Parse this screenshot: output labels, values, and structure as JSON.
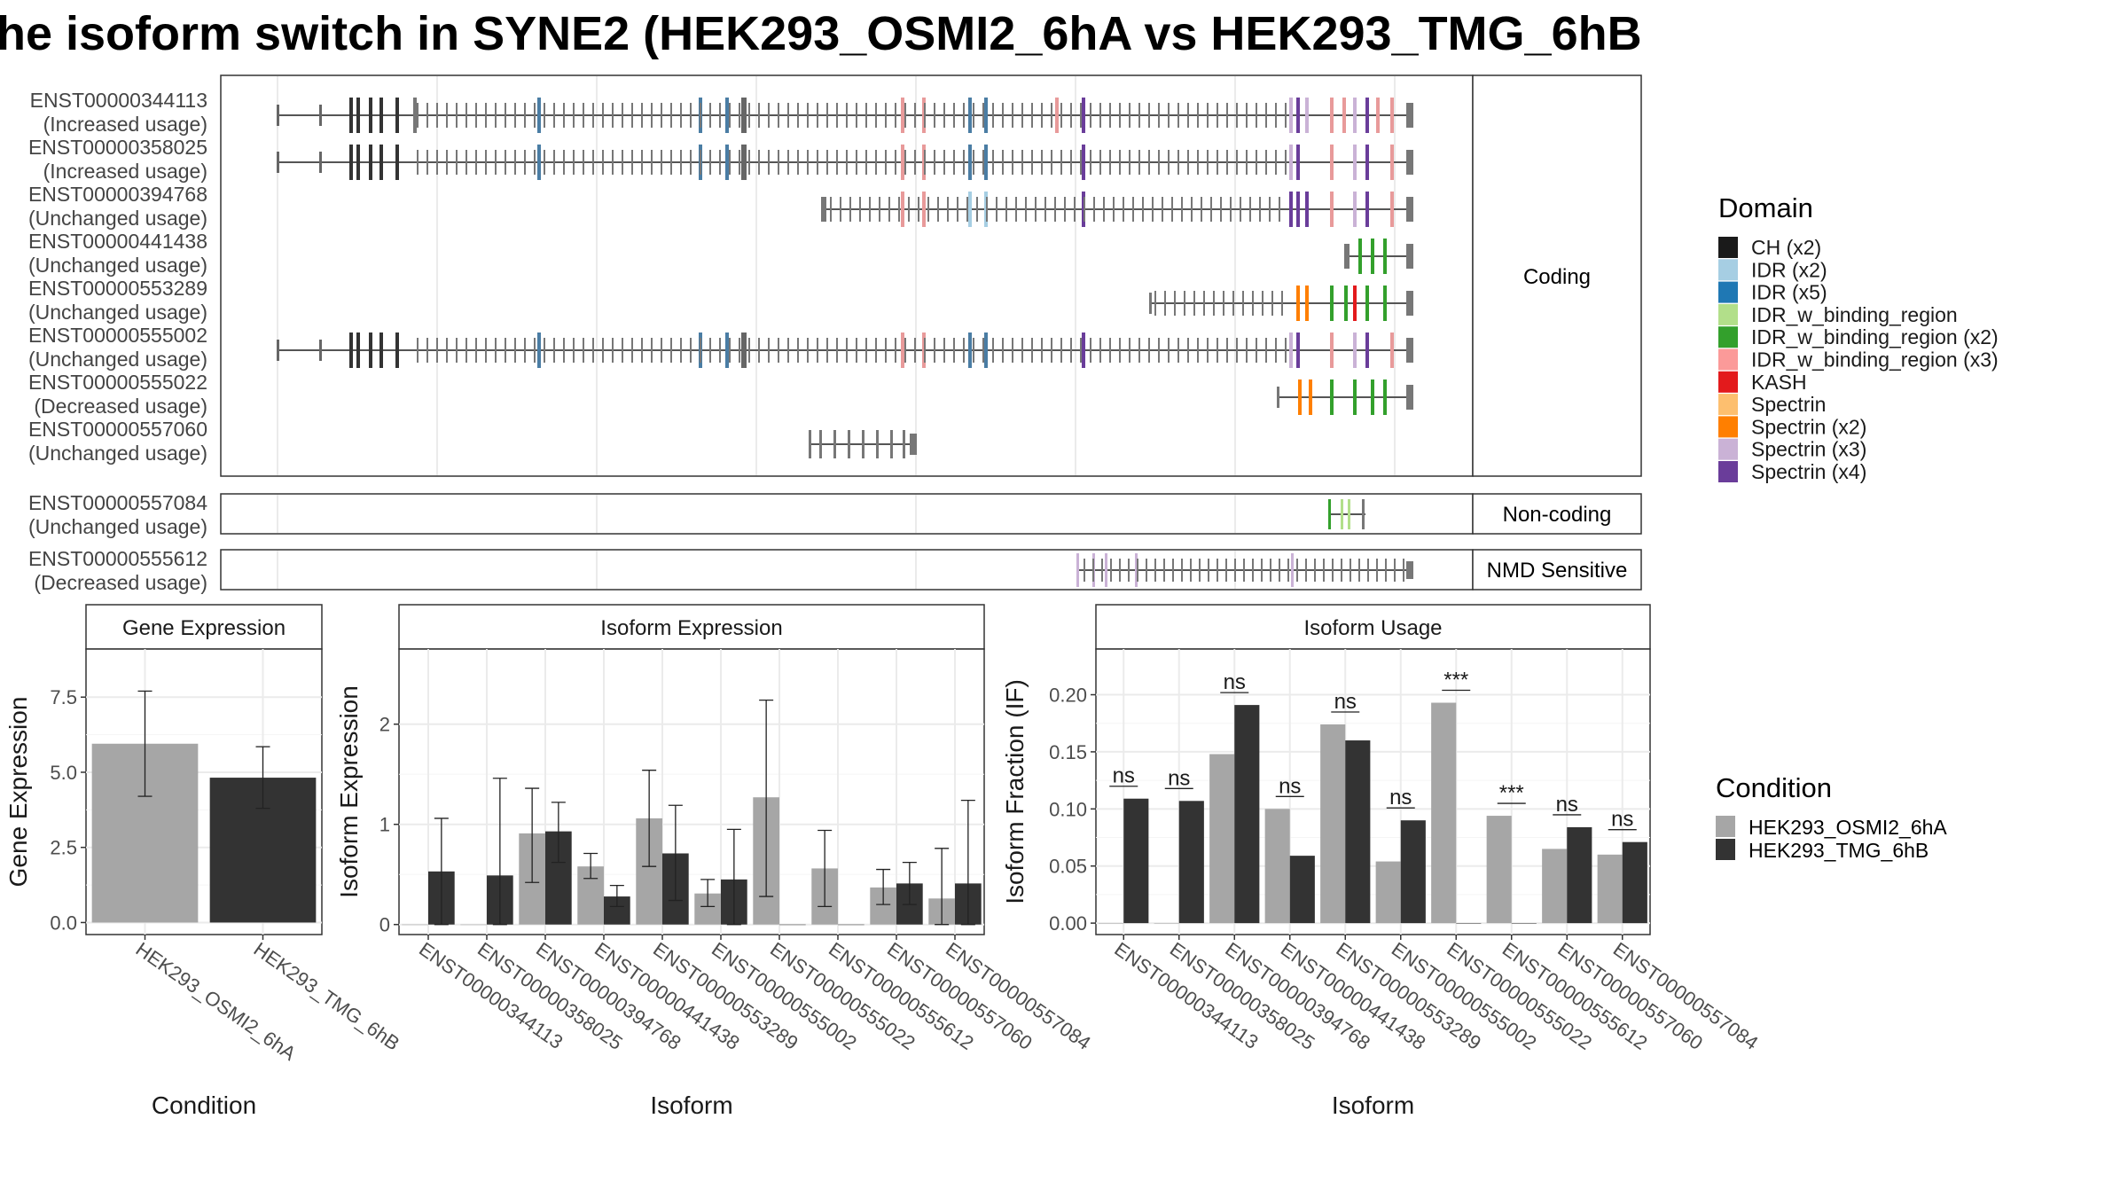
{
  "title": "he isoform switch in SYNE2 (HEK293_OSMI2_6hA vs HEK293_TMG_6hB",
  "colors": {
    "cond_a": "#a6a6a6",
    "cond_b": "#333333",
    "domains": [
      "#1a1a1a",
      "#a6cee3",
      "#1f78b4",
      "#b2df8a",
      "#33a02c",
      "#fb9a99",
      "#e31a1c",
      "#fdbf6f",
      "#ff7f00",
      "#cab2d6",
      "#6a3d9a"
    ]
  },
  "structure": {
    "sections": [
      {
        "label": "Coding",
        "isoforms": [
          {
            "id": "ENST00000344113",
            "usage": "(Increased usage)"
          },
          {
            "id": "ENST00000358025",
            "usage": "(Increased usage)"
          },
          {
            "id": "ENST00000394768",
            "usage": "(Unchanged usage)"
          },
          {
            "id": "ENST00000441438",
            "usage": "(Unchanged usage)"
          },
          {
            "id": "ENST00000553289",
            "usage": "(Unchanged usage)"
          },
          {
            "id": "ENST00000555002",
            "usage": "(Unchanged usage)"
          },
          {
            "id": "ENST00000555022",
            "usage": "(Decreased usage)"
          },
          {
            "id": "ENST00000557060",
            "usage": "(Unchanged usage)"
          }
        ]
      },
      {
        "label": "Non-coding",
        "isoforms": [
          {
            "id": "ENST00000557084",
            "usage": "(Unchanged usage)"
          }
        ]
      },
      {
        "label": "NMD Sensitive",
        "isoforms": [
          {
            "id": "ENST00000555612",
            "usage": "(Decreased usage)"
          }
        ]
      }
    ]
  },
  "legends": {
    "domain_title": "Domain",
    "domains": [
      "CH (x2)",
      "IDR (x2)",
      "IDR (x5)",
      "IDR_w_binding_region",
      "IDR_w_binding_region (x2)",
      "IDR_w_binding_region (x3)",
      "KASH",
      "Spectrin",
      "Spectrin (x2)",
      "Spectrin (x3)",
      "Spectrin (x4)"
    ],
    "condition_title": "Condition",
    "conditions": [
      "HEK293_OSMI2_6hA",
      "HEK293_TMG_6hB"
    ]
  },
  "chart_data": [
    {
      "type": "bar",
      "title": "Gene Expression",
      "xlabel": "Condition",
      "ylabel": "Gene Expression",
      "categories": [
        "HEK293_OSMI2_6hA",
        "HEK293_TMG_6hB"
      ],
      "values": [
        5.95,
        4.82
      ],
      "err_low": [
        4.2,
        3.8
      ],
      "err_high": [
        7.7,
        5.85
      ],
      "ylim": [
        -0.4,
        9.1
      ],
      "yticks": [
        0.0,
        2.5,
        5.0,
        7.5
      ],
      "ytick_labels": [
        "0.0",
        "2.5",
        "5.0",
        "7.5"
      ],
      "grid": true
    },
    {
      "type": "bar",
      "title": "Isoform Expression",
      "xlabel": "Isoform",
      "ylabel": "Isoform Expression",
      "categories": [
        "ENST00000344113",
        "ENST00000358025",
        "ENST00000394768",
        "ENST00000441438",
        "ENST00000553289",
        "ENST00000555002",
        "ENST00000555022",
        "ENST00000555612",
        "ENST00000557060",
        "ENST00000557084"
      ],
      "series": [
        {
          "name": "HEK293_OSMI2_6hA",
          "values": [
            0,
            0,
            0.91,
            0.58,
            1.06,
            0.31,
            1.27,
            0.56,
            0.37,
            0.26
          ],
          "err_low": [
            0,
            0,
            0.42,
            0.46,
            0.58,
            0.18,
            0.28,
            0.18,
            0.2,
            0
          ],
          "err_high": [
            0,
            0,
            1.36,
            0.71,
            1.54,
            0.45,
            2.24,
            0.94,
            0.55,
            0.76
          ]
        },
        {
          "name": "HEK293_TMG_6hB",
          "values": [
            0.53,
            0.49,
            0.93,
            0.28,
            0.71,
            0.45,
            0,
            0,
            0.41,
            0.41
          ],
          "err_low": [
            0,
            0,
            0.62,
            0.18,
            0.24,
            0,
            0,
            0,
            0.2,
            0
          ],
          "err_high": [
            1.06,
            1.46,
            1.22,
            0.39,
            1.19,
            0.95,
            0,
            0,
            0.62,
            1.24
          ]
        }
      ],
      "ylim": [
        -0.1,
        2.75
      ],
      "yticks": [
        0,
        1,
        2
      ],
      "ytick_labels": [
        "0",
        "1",
        "2"
      ],
      "grid": true
    },
    {
      "type": "bar",
      "title": "Isoform Usage",
      "xlabel": "Isoform",
      "ylabel": "Isoform Fraction (IF)",
      "categories": [
        "ENST00000344113",
        "ENST00000358025",
        "ENST00000394768",
        "ENST00000441438",
        "ENST00000553289",
        "ENST00000555002",
        "ENST00000555022",
        "ENST00000555612",
        "ENST00000557060",
        "ENST00000557084"
      ],
      "series": [
        {
          "name": "HEK293_OSMI2_6hA",
          "values": [
            0,
            0,
            0.148,
            0.1,
            0.174,
            0.054,
            0.193,
            0.094,
            0.065,
            0.06
          ]
        },
        {
          "name": "HEK293_TMG_6hB",
          "values": [
            0.109,
            0.107,
            0.191,
            0.059,
            0.16,
            0.09,
            0,
            0,
            0.084,
            0.071
          ]
        }
      ],
      "significance": [
        "ns",
        "ns",
        "ns",
        "ns",
        "ns",
        "ns",
        "***",
        "***",
        "ns",
        "ns"
      ],
      "ylim": [
        -0.01,
        0.24
      ],
      "yticks": [
        0.0,
        0.05,
        0.1,
        0.15,
        0.2
      ],
      "ytick_labels": [
        "0.00",
        "0.05",
        "0.10",
        "0.15",
        "0.20"
      ],
      "grid": true
    }
  ]
}
